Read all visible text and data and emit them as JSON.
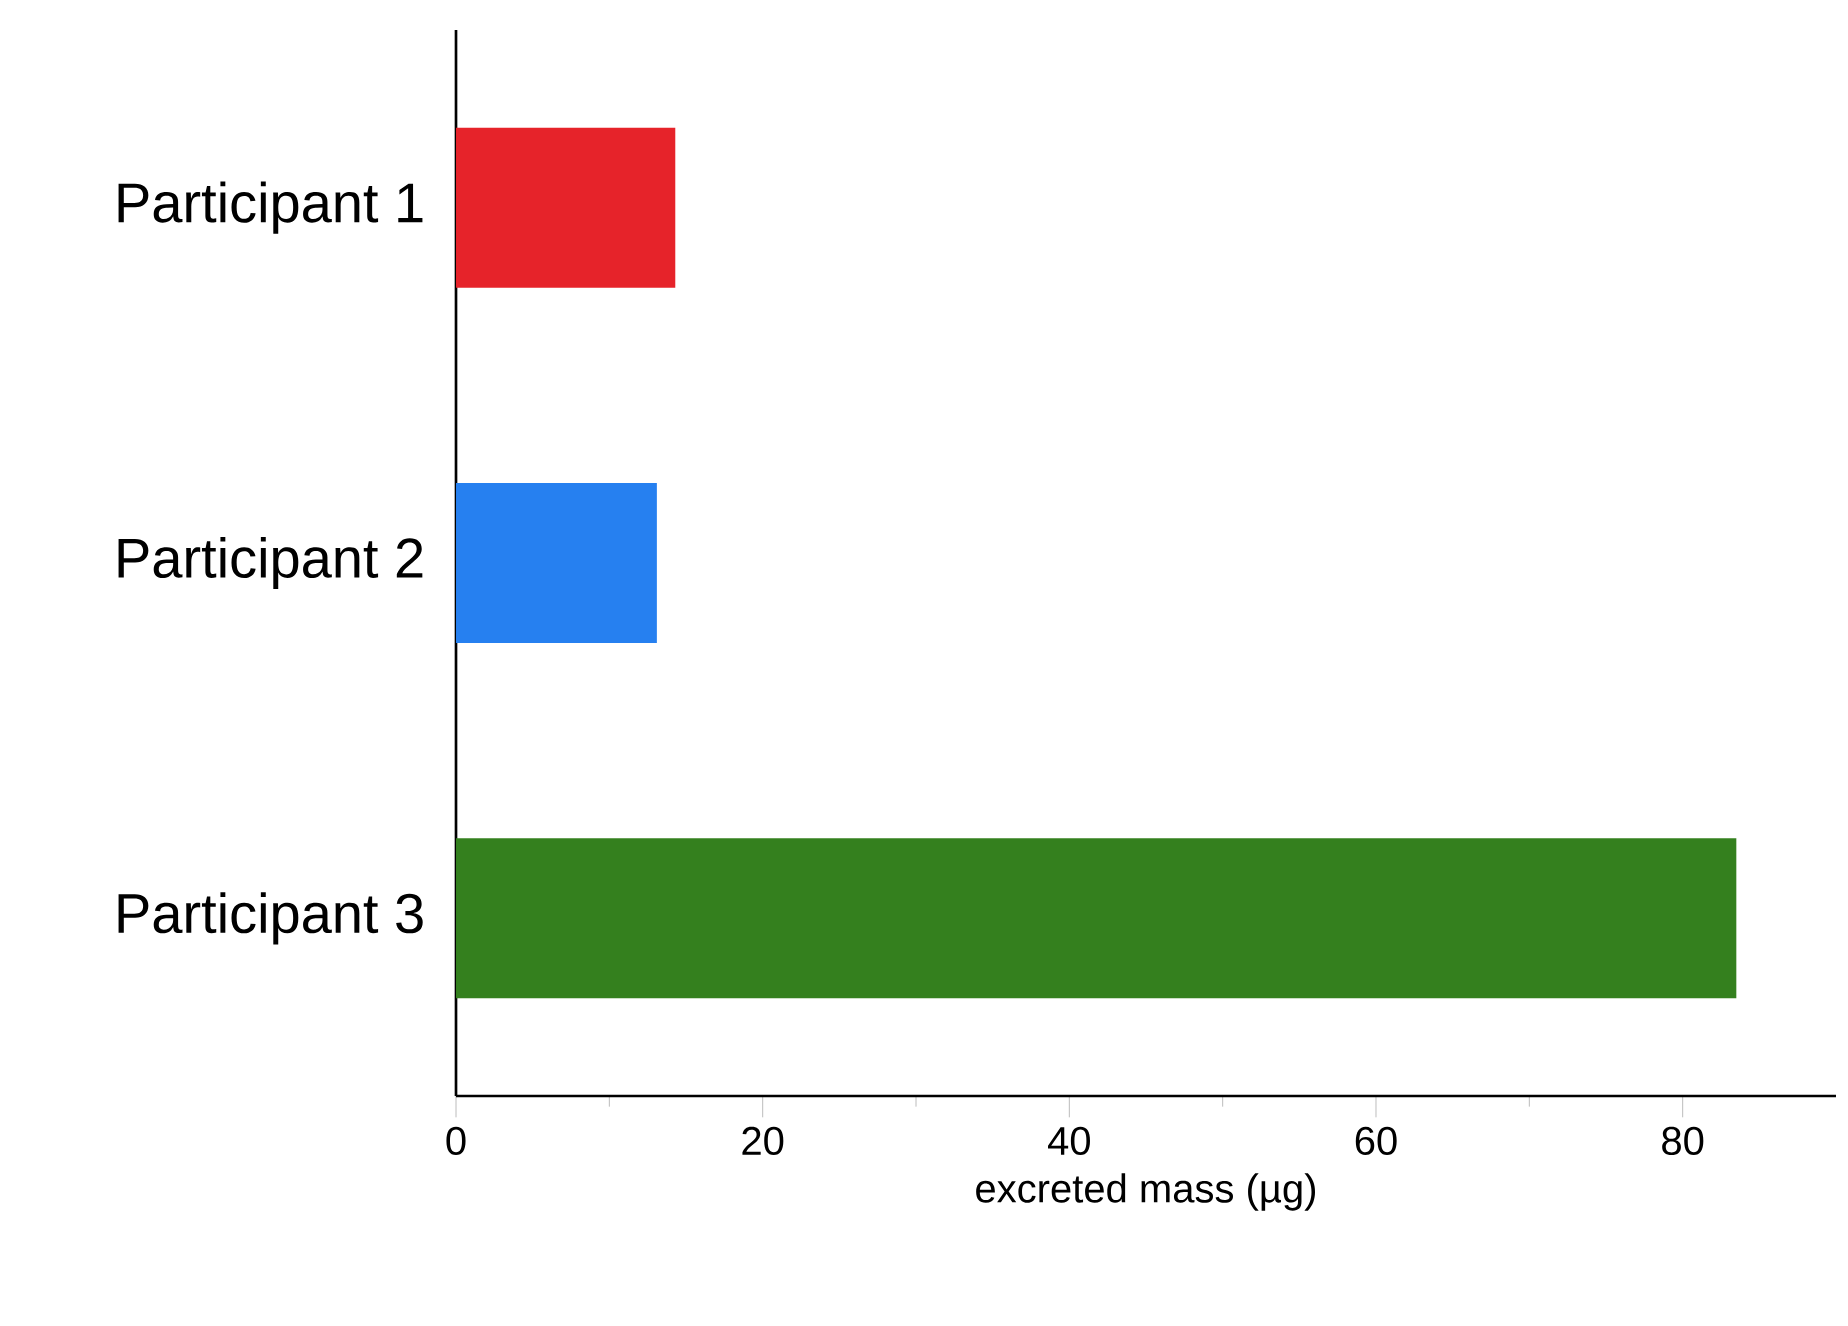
{
  "chart_data": {
    "type": "bar",
    "orientation": "horizontal",
    "categories": [
      "Participant 1",
      "Participant 2",
      "Participant 3"
    ],
    "values": [
      14.3,
      13.1,
      83.5
    ],
    "colors": [
      "#e6232a",
      "#2680f0",
      "#34801e"
    ],
    "xlim": [
      0,
      90
    ],
    "xticks": [
      0,
      {
        "value": 10,
        "label": null
      },
      20,
      {
        "value": 30,
        "label": null
      },
      40,
      {
        "value": 50,
        "label": null
      },
      60,
      {
        "value": 70,
        "label": null
      },
      80
    ],
    "xlabel": "excreted mass (µg)"
  }
}
